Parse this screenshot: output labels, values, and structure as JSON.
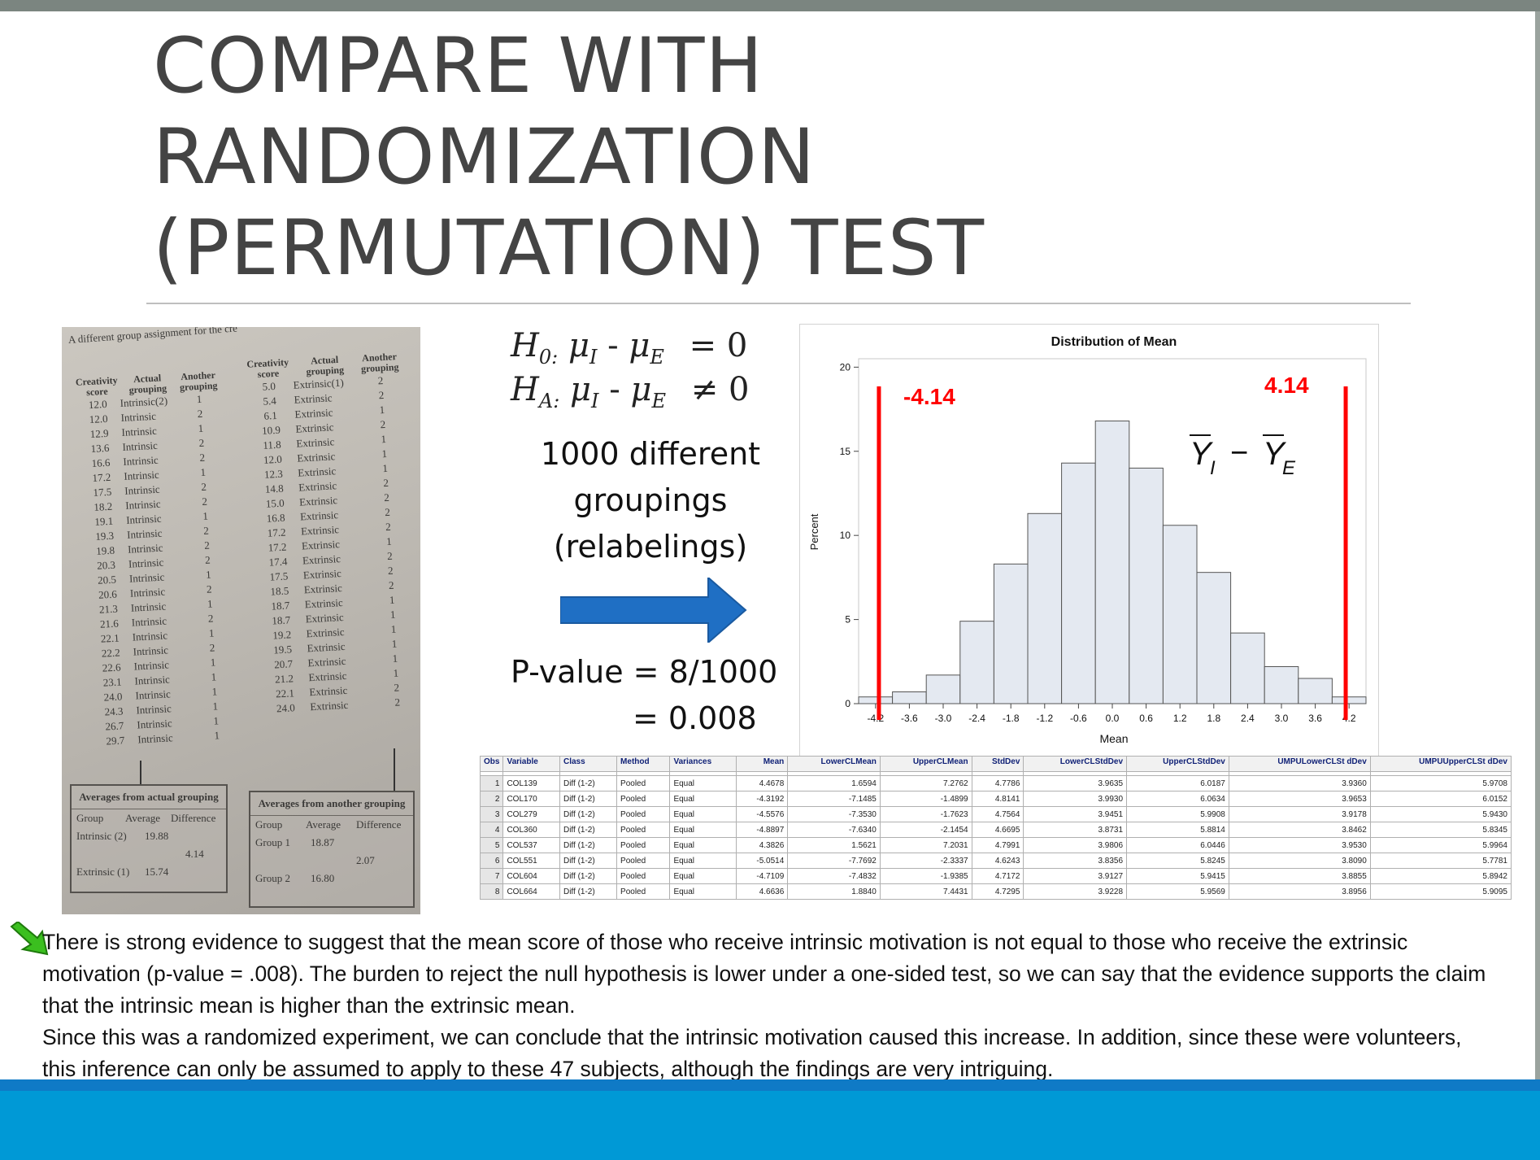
{
  "title": {
    "line1": "COMPARE WITH",
    "line2": "RANDOMIZATION",
    "line3": "(PERMUTATION) TEST"
  },
  "photo": {
    "caption": "A different group assignment for the cre",
    "left_headers": [
      "Creativity score",
      "Actual grouping",
      "Another grouping"
    ],
    "right_headers": [
      "Creativity score",
      "Actual grouping",
      "Another grouping"
    ],
    "left_rows": [
      [
        "12.0",
        "Intrinsic(2)",
        "1"
      ],
      [
        "12.0",
        "Intrinsic",
        "2"
      ],
      [
        "12.9",
        "Intrinsic",
        "1"
      ],
      [
        "13.6",
        "Intrinsic",
        "2"
      ],
      [
        "16.6",
        "Intrinsic",
        "2"
      ],
      [
        "17.2",
        "Intrinsic",
        "1"
      ],
      [
        "17.5",
        "Intrinsic",
        "2"
      ],
      [
        "18.2",
        "Intrinsic",
        "2"
      ],
      [
        "19.1",
        "Intrinsic",
        "1"
      ],
      [
        "19.3",
        "Intrinsic",
        "2"
      ],
      [
        "19.8",
        "Intrinsic",
        "2"
      ],
      [
        "20.3",
        "Intrinsic",
        "2"
      ],
      [
        "20.5",
        "Intrinsic",
        "1"
      ],
      [
        "20.6",
        "Intrinsic",
        "2"
      ],
      [
        "21.3",
        "Intrinsic",
        "1"
      ],
      [
        "21.6",
        "Intrinsic",
        "2"
      ],
      [
        "22.1",
        "Intrinsic",
        "1"
      ],
      [
        "22.2",
        "Intrinsic",
        "2"
      ],
      [
        "22.6",
        "Intrinsic",
        "1"
      ],
      [
        "23.1",
        "Intrinsic",
        "1"
      ],
      [
        "24.0",
        "Intrinsic",
        "1"
      ],
      [
        "24.3",
        "Intrinsic",
        "1"
      ],
      [
        "26.7",
        "Intrinsic",
        "1"
      ],
      [
        "29.7",
        "Intrinsic",
        "1"
      ]
    ],
    "right_rows": [
      [
        "5.0",
        "Extrinsic(1)",
        "2"
      ],
      [
        "5.4",
        "Extrinsic",
        "2"
      ],
      [
        "6.1",
        "Extrinsic",
        "1"
      ],
      [
        "10.9",
        "Extrinsic",
        "2"
      ],
      [
        "11.8",
        "Extrinsic",
        "1"
      ],
      [
        "12.0",
        "Extrinsic",
        "1"
      ],
      [
        "12.3",
        "Extrinsic",
        "1"
      ],
      [
        "14.8",
        "Extrinsic",
        "2"
      ],
      [
        "15.0",
        "Extrinsic",
        "2"
      ],
      [
        "16.8",
        "Extrinsic",
        "2"
      ],
      [
        "17.2",
        "Extrinsic",
        "2"
      ],
      [
        "17.2",
        "Extrinsic",
        "1"
      ],
      [
        "17.4",
        "Extrinsic",
        "2"
      ],
      [
        "17.5",
        "Extrinsic",
        "2"
      ],
      [
        "18.5",
        "Extrinsic",
        "2"
      ],
      [
        "18.7",
        "Extrinsic",
        "1"
      ],
      [
        "18.7",
        "Extrinsic",
        "1"
      ],
      [
        "19.2",
        "Extrinsic",
        "1"
      ],
      [
        "19.5",
        "Extrinsic",
        "1"
      ],
      [
        "20.7",
        "Extrinsic",
        "1"
      ],
      [
        "21.2",
        "Extrinsic",
        "1"
      ],
      [
        "22.1",
        "Extrinsic",
        "2"
      ],
      [
        "24.0",
        "Extrinsic",
        "2"
      ]
    ],
    "avg_actual": {
      "title": "Averages from actual grouping",
      "headers": [
        "Group",
        "Average",
        "Difference"
      ],
      "row1": [
        "Intrinsic (2)",
        "19.88"
      ],
      "row2": [
        "Extrinsic (1)",
        "15.74"
      ],
      "diff": "4.14"
    },
    "avg_another": {
      "title": "Averages from another grouping",
      "headers": [
        "Group",
        "Average",
        "Difference"
      ],
      "row1": [
        "Group 1",
        "18.87"
      ],
      "row2": [
        "Group 2",
        "16.80"
      ],
      "diff": "2.07"
    }
  },
  "hypotheses": {
    "h0_lhs": "H",
    "h0_sub": "0:",
    "h0_expr": "μ",
    "h0_sub_i": "I",
    "minus": "-",
    "h0_sub_e": "E",
    "h0_rel": "= 0",
    "ha_lhs": "H",
    "ha_sub": "A:",
    "ha_rel": "≠ 0"
  },
  "groupings_text": {
    "line1": "1000 different",
    "line2": "groupings",
    "line3": "(relabelings)"
  },
  "pvalue": {
    "line1": "P-value = 8/1000",
    "line2": "= 0.008"
  },
  "chart_data": {
    "type": "bar",
    "title": "Distribution of Mean",
    "xlabel": "Mean",
    "ylabel": "Percent",
    "xticks": [
      "-4.2",
      "-3.6",
      "-3.0",
      "-2.4",
      "-1.8",
      "-1.2",
      "-0.6",
      "0.0",
      "0.6",
      "1.2",
      "1.8",
      "2.4",
      "3.0",
      "3.6",
      "4.2"
    ],
    "yticks": [
      0,
      5,
      10,
      15,
      20
    ],
    "ylim": [
      0,
      20.5
    ],
    "xlim": [
      -4.5,
      4.5
    ],
    "bin_width": 0.6,
    "bin_centers": [
      -4.2,
      -3.6,
      -3.0,
      -2.4,
      -1.8,
      -1.2,
      -0.6,
      0.0,
      0.6,
      1.2,
      1.8,
      2.4,
      3.0,
      3.6,
      4.2
    ],
    "values": [
      0.4,
      0.7,
      1.7,
      4.9,
      8.3,
      11.3,
      14.3,
      16.8,
      14.0,
      10.6,
      7.8,
      4.2,
      2.2,
      1.5,
      0.4
    ],
    "annotations": {
      "neg_label": "-4.14",
      "pos_label": "4.14",
      "neg_line_x": -4.14,
      "pos_line_x": 4.14,
      "formula_y": "Y",
      "formula_sub_i": "I",
      "formula_minus": "−",
      "formula_sub_e": "E"
    },
    "colors": {
      "bar_fill": "#e4e9f1",
      "bar_stroke": "#555555",
      "cutoff": "#ff0000"
    }
  },
  "sas_table": {
    "headers": [
      "Obs",
      "Variable",
      "Class",
      "Method",
      "Variances",
      "Mean",
      "LowerCLMean",
      "UpperCLMean",
      "StdDev",
      "LowerCLStdDev",
      "UpperCLStdDev",
      "UMPULowerCLStdDev",
      "UMPUUpperCLStdDev"
    ],
    "header_display": [
      "Obs",
      "Variable",
      "Class",
      "Method",
      "Variances",
      "Mean",
      "LowerCLMean",
      "UpperCLMean",
      "StdDev",
      "LowerCLStdDev",
      "UpperCLStdDev",
      "UMPULowerCLSt dDev",
      "UMPUUpperCLSt dDev"
    ],
    "rows": [
      [
        "1",
        "COL139",
        "Diff (1-2)",
        "Pooled",
        "Equal",
        "4.4678",
        "1.6594",
        "7.2762",
        "4.7786",
        "3.9635",
        "6.0187",
        "3.9360",
        "5.9708"
      ],
      [
        "2",
        "COL170",
        "Diff (1-2)",
        "Pooled",
        "Equal",
        "-4.3192",
        "-7.1485",
        "-1.4899",
        "4.8141",
        "3.9930",
        "6.0634",
        "3.9653",
        "6.0152"
      ],
      [
        "3",
        "COL279",
        "Diff (1-2)",
        "Pooled",
        "Equal",
        "-4.5576",
        "-7.3530",
        "-1.7623",
        "4.7564",
        "3.9451",
        "5.9908",
        "3.9178",
        "5.9430"
      ],
      [
        "4",
        "COL360",
        "Diff (1-2)",
        "Pooled",
        "Equal",
        "-4.8897",
        "-7.6340",
        "-2.1454",
        "4.6695",
        "3.8731",
        "5.8814",
        "3.8462",
        "5.8345"
      ],
      [
        "5",
        "COL537",
        "Diff (1-2)",
        "Pooled",
        "Equal",
        "4.3826",
        "1.5621",
        "7.2031",
        "4.7991",
        "3.9806",
        "6.0446",
        "3.9530",
        "5.9964"
      ],
      [
        "6",
        "COL551",
        "Diff (1-2)",
        "Pooled",
        "Equal",
        "-5.0514",
        "-7.7692",
        "-2.3337",
        "4.6243",
        "3.8356",
        "5.8245",
        "3.8090",
        "5.7781"
      ],
      [
        "7",
        "COL604",
        "Diff (1-2)",
        "Pooled",
        "Equal",
        "-4.7109",
        "-7.4832",
        "-1.9385",
        "4.7172",
        "3.9127",
        "5.9415",
        "3.8855",
        "5.8942"
      ],
      [
        "8",
        "COL664",
        "Diff (1-2)",
        "Pooled",
        "Equal",
        "4.6636",
        "1.8840",
        "7.4431",
        "4.7295",
        "3.9228",
        "5.9569",
        "3.8956",
        "5.9095"
      ]
    ]
  },
  "conclusion": {
    "p1": "There is strong evidence to suggest that the mean score of those who receive intrinsic motivation is not equal to those who receive the extrinsic motivation (p-value = .008). The burden to reject the null hypothesis is lower under a one-sided test, so we can say that the evidence supports the claim that the intrinsic mean is higher than the extrinsic mean.",
    "p2": "Since this was a randomized experiment, we can conclude that the intrinsic motivation caused this increase.  In addition, since these were volunteers, this inference can only be assumed to apply to these 47 subjects, although the findings are very intriguing."
  },
  "colors": {
    "accent_blue": "#0099d6",
    "arrow_blue": "#1f6fc4",
    "cutoff_red": "#ff0000",
    "green_arrow": "#3bbf1f"
  }
}
